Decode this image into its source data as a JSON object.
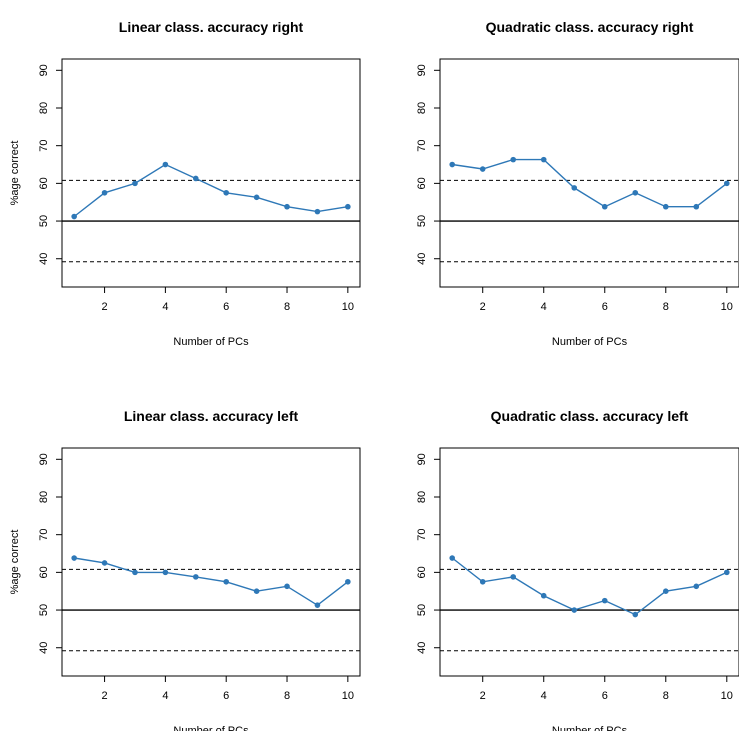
{
  "colors": {
    "series": "#2E78B7",
    "reference": "#000000"
  },
  "chart_data": [
    {
      "type": "line",
      "title": "Linear class. accuracy right",
      "xlabel": "Number of PCs",
      "ylabel": "%age correct",
      "x": [
        1,
        2,
        3,
        4,
        5,
        6,
        7,
        8,
        9,
        10
      ],
      "series": [
        {
          "values": [
            51.2,
            57.5,
            60.0,
            65.0,
            61.3,
            57.5,
            56.3,
            53.8,
            52.5,
            53.8
          ]
        }
      ],
      "reference_lines": [
        {
          "y": 50,
          "style": "solid"
        },
        {
          "y": 60.8,
          "style": "dashed"
        },
        {
          "y": 39.2,
          "style": "dashed"
        }
      ],
      "xticks": [
        2,
        4,
        6,
        8,
        10
      ],
      "yticks": [
        40,
        50,
        60,
        70,
        80,
        90
      ],
      "xlim": [
        0.6,
        10.4
      ],
      "ylim": [
        32.5,
        93
      ],
      "grid": false
    },
    {
      "type": "line",
      "title": "Quadratic class. accuracy right",
      "xlabel": "Number of PCs",
      "ylabel": "",
      "x": [
        1,
        2,
        3,
        4,
        5,
        6,
        7,
        8,
        9,
        10
      ],
      "series": [
        {
          "values": [
            65.0,
            63.8,
            66.3,
            66.3,
            58.8,
            53.8,
            57.5,
            53.8,
            53.8,
            60.0
          ]
        }
      ],
      "reference_lines": [
        {
          "y": 50,
          "style": "solid"
        },
        {
          "y": 60.8,
          "style": "dashed"
        },
        {
          "y": 39.2,
          "style": "dashed"
        }
      ],
      "xticks": [
        2,
        4,
        6,
        8,
        10
      ],
      "yticks": [
        40,
        50,
        60,
        70,
        80,
        90
      ],
      "xlim": [
        0.6,
        10.4
      ],
      "ylim": [
        32.5,
        93
      ],
      "grid": false
    },
    {
      "type": "line",
      "title": "Linear class. accuracy left",
      "xlabel": "Number of PCs",
      "ylabel": "%age correct",
      "x": [
        1,
        2,
        3,
        4,
        5,
        6,
        7,
        8,
        9,
        10
      ],
      "series": [
        {
          "values": [
            63.8,
            62.5,
            60.0,
            60.0,
            58.8,
            57.5,
            55.0,
            56.3,
            51.3,
            57.5
          ]
        }
      ],
      "reference_lines": [
        {
          "y": 50,
          "style": "solid"
        },
        {
          "y": 60.8,
          "style": "dashed"
        },
        {
          "y": 39.2,
          "style": "dashed"
        }
      ],
      "xticks": [
        2,
        4,
        6,
        8,
        10
      ],
      "yticks": [
        40,
        50,
        60,
        70,
        80,
        90
      ],
      "xlim": [
        0.6,
        10.4
      ],
      "ylim": [
        32.5,
        93
      ],
      "grid": false
    },
    {
      "type": "line",
      "title": "Quadratic class. accuracy left",
      "xlabel": "Number of PCs",
      "ylabel": "",
      "x": [
        1,
        2,
        3,
        4,
        5,
        6,
        7,
        8,
        9,
        10
      ],
      "series": [
        {
          "values": [
            63.8,
            57.5,
            58.8,
            53.8,
            50.0,
            52.5,
            48.8,
            55.0,
            56.3,
            60.0
          ]
        }
      ],
      "reference_lines": [
        {
          "y": 50,
          "style": "solid"
        },
        {
          "y": 60.8,
          "style": "dashed"
        },
        {
          "y": 39.2,
          "style": "dashed"
        }
      ],
      "xticks": [
        2,
        4,
        6,
        8,
        10
      ],
      "yticks": [
        40,
        50,
        60,
        70,
        80,
        90
      ],
      "xlim": [
        0.6,
        10.4
      ],
      "ylim": [
        32.5,
        93
      ],
      "grid": false
    }
  ]
}
